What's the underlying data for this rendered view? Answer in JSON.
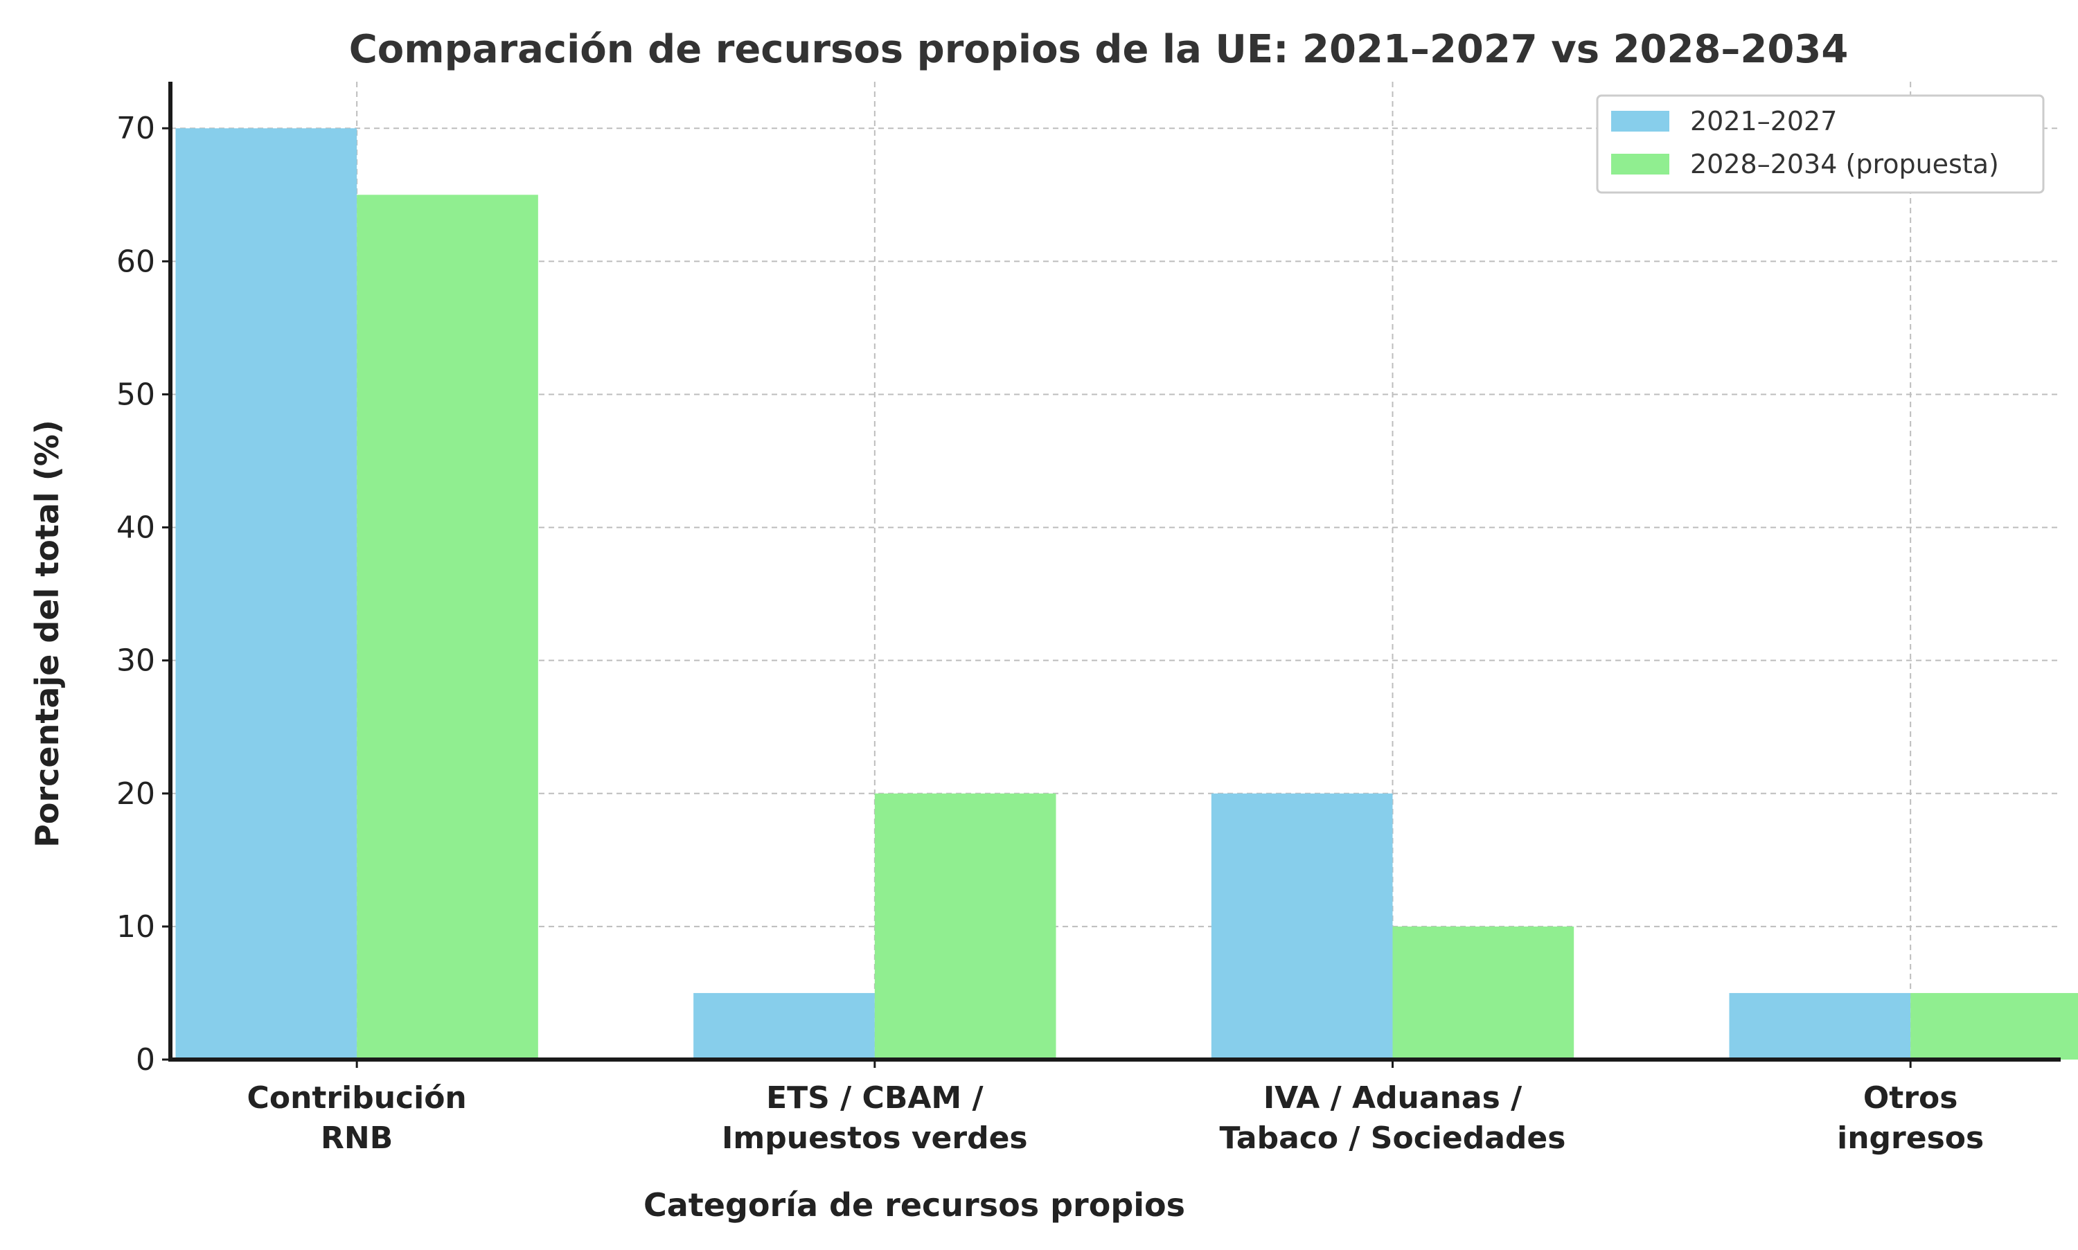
{
  "chart_data": {
    "type": "bar",
    "title": "Comparación de recursos propios de la UE: 2021–2027 vs 2028–2034",
    "xlabel": "Categoría de recursos propios",
    "ylabel": "Porcentaje del total (%)",
    "categories": [
      [
        "Contribución",
        "RNB"
      ],
      [
        "ETS / CBAM /",
        "Impuestos verdes"
      ],
      [
        "IVA / Aduanas /",
        "Tabaco / Sociedades"
      ],
      [
        "Otros",
        "ingresos"
      ]
    ],
    "series": [
      {
        "name": "2021–2027",
        "color": "#87ceeb",
        "values": [
          70,
          5,
          20,
          5
        ]
      },
      {
        "name": "2028–2034 (propuesta)",
        "color": "#90ee90",
        "values": [
          65,
          20,
          10,
          5
        ]
      }
    ],
    "ylim": [
      0,
      73.5
    ],
    "yticks": [
      0,
      10,
      20,
      30,
      40,
      50,
      60,
      70
    ],
    "grid": true,
    "legend_position": "top-right"
  }
}
